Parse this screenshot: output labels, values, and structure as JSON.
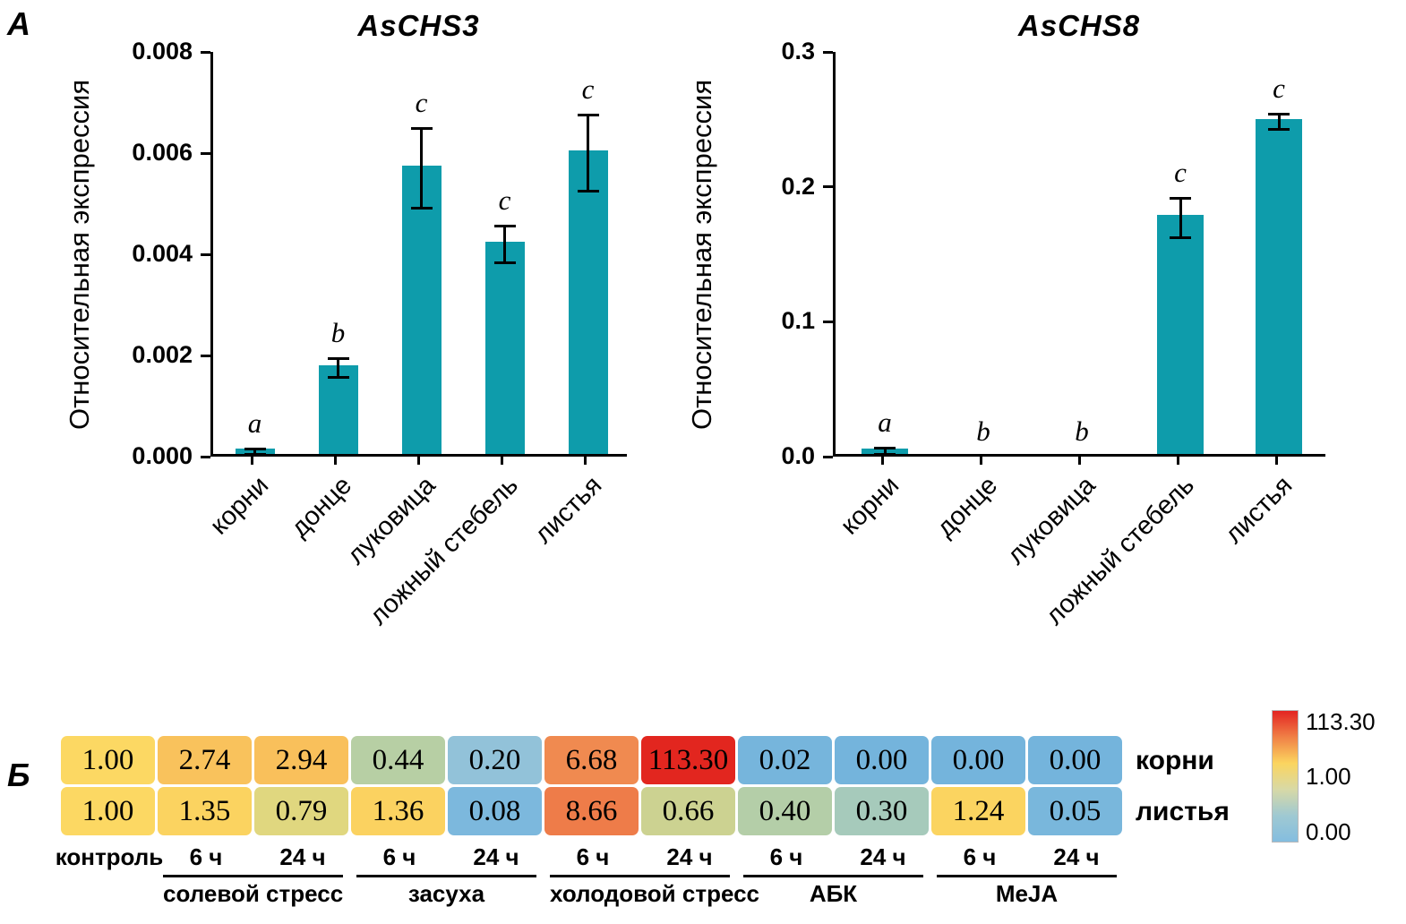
{
  "panels": {
    "a": "А",
    "b": "Б"
  },
  "colors": {
    "bar": "#0E9CAB",
    "axis": "#000000"
  },
  "chart_data": [
    {
      "type": "bar",
      "title": "AsCHS3",
      "ylabel": "Относительная экспрессия",
      "categories": [
        "корни",
        "донце",
        "луковица",
        "ложный стебель",
        "листья"
      ],
      "values": [
        0.0001,
        0.00175,
        0.0057,
        0.0042,
        0.006
      ],
      "errors": [
        6e-05,
        0.0002,
        0.0008,
        0.00037,
        0.00076
      ],
      "sig_letters": [
        "a",
        "b",
        "c",
        "c",
        "c"
      ],
      "ylim": [
        0,
        0.008
      ],
      "yticks": [
        {
          "value": 0,
          "label": "0.000"
        },
        {
          "value": 0.002,
          "label": "0.002"
        },
        {
          "value": 0.004,
          "label": "0.004"
        },
        {
          "value": 0.006,
          "label": "0.006"
        },
        {
          "value": 0.008,
          "label": "0.008"
        }
      ]
    },
    {
      "type": "bar",
      "title": "AsCHS8",
      "ylabel": "Относительная экспрессия",
      "categories": [
        "корни",
        "донце",
        "луковица",
        "ложный стебель",
        "листья"
      ],
      "values": [
        0.004,
        0,
        0,
        0.177,
        0.248
      ],
      "errors": [
        0.0025,
        0,
        0,
        0.015,
        0.006
      ],
      "sig_letters": [
        "a",
        "b",
        "b",
        "c",
        "c"
      ],
      "ylim": [
        0,
        0.3
      ],
      "yticks": [
        {
          "value": 0,
          "label": "0.0"
        },
        {
          "value": 0.1,
          "label": "0.1"
        },
        {
          "value": 0.2,
          "label": "0.2"
        },
        {
          "value": 0.3,
          "label": "0.3"
        }
      ]
    },
    {
      "type": "heatmap",
      "rows": [
        "корни",
        "листья"
      ],
      "columns": [
        "контроль",
        "6 ч",
        "24 ч",
        "6 ч",
        "24 ч",
        "6 ч",
        "24 ч",
        "6 ч",
        "24 ч",
        "6 ч",
        "24 ч"
      ],
      "values": [
        [
          1.0,
          2.74,
          2.94,
          0.44,
          0.2,
          6.68,
          113.3,
          0.02,
          0.0,
          0.0,
          0.0
        ],
        [
          1.0,
          1.35,
          0.79,
          1.36,
          0.08,
          8.66,
          0.66,
          0.4,
          0.3,
          1.24,
          0.05
        ]
      ],
      "value_labels": [
        [
          "1.00",
          "2.74",
          "2.94",
          "0.44",
          "0.20",
          "6.68",
          "113.30",
          "0.02",
          "0.00",
          "0.00",
          "0.00"
        ],
        [
          "1.00",
          "1.35",
          "0.79",
          "1.36",
          "0.08",
          "8.66",
          "0.66",
          "0.40",
          "0.30",
          "1.24",
          "0.05"
        ]
      ],
      "cell_colors": [
        [
          "#fcd863",
          "#f9c25c",
          "#f9c05b",
          "#b7cfa4",
          "#92c2d9",
          "#f08a50",
          "#e2261f",
          "#76b5dc",
          "#74b4dc",
          "#74b4dc",
          "#74b4dc"
        ],
        [
          "#fcd863",
          "#fbd360",
          "#e0d77f",
          "#fbd260",
          "#7cb8dd",
          "#ee7c49",
          "#ccd291",
          "#b4cea8",
          "#a6cabb",
          "#fbd460",
          "#79b7dc"
        ]
      ],
      "groups": [
        {
          "label": "солевой стресс",
          "start": 1,
          "span": 2
        },
        {
          "label": "засуха",
          "start": 3,
          "span": 2
        },
        {
          "label": "холодовой стресс",
          "start": 5,
          "span": 2
        },
        {
          "label": "АБК",
          "start": 7,
          "span": 2
        },
        {
          "label": "MeJA",
          "start": 9,
          "span": 2
        }
      ],
      "colorbar": {
        "ticks": [
          "113.30",
          "1.00",
          "0.00"
        ],
        "gradient": [
          "#e32422",
          "#f08046",
          "#fbd55f",
          "#d8d9a6",
          "#9fc9d2",
          "#84bddf"
        ]
      }
    }
  ]
}
